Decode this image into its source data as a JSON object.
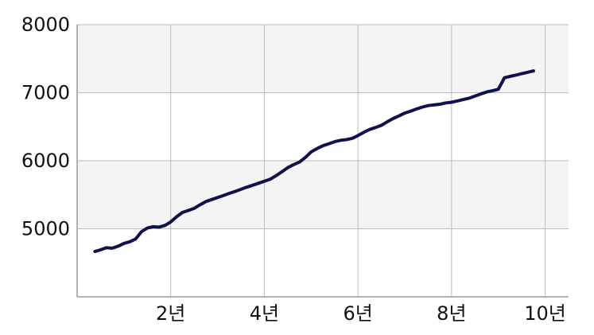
{
  "chart_data": {
    "type": "line",
    "title": "",
    "xlabel": "",
    "ylabel": "",
    "xlim": [
      0,
      10.5
    ],
    "ylim": [
      4000,
      8000
    ],
    "y_ticks": [
      5000,
      6000,
      7000,
      8000
    ],
    "y_tick_labels": [
      "5000",
      "6000",
      "7000",
      "8000"
    ],
    "x_ticks": [
      2,
      4,
      6,
      8,
      10
    ],
    "x_tick_labels": [
      "2년",
      "4년",
      "6년",
      "8년",
      "10년"
    ],
    "grid": true,
    "legend": "none",
    "colors": {
      "line": "#12124a",
      "band": "#f4f4f4",
      "grid": "#bdbdbd",
      "axis": "#9a9a9a"
    },
    "series": [
      {
        "x": [
          0.38,
          0.5,
          0.62,
          0.75,
          0.88,
          1.0,
          1.13,
          1.25,
          1.38,
          1.5,
          1.62,
          1.75,
          1.88,
          2.0,
          2.13,
          2.25,
          2.38,
          2.5,
          2.62,
          2.75,
          2.88,
          3.0,
          3.13,
          3.25,
          3.38,
          3.5,
          3.62,
          3.75,
          3.88,
          4.0,
          4.13,
          4.25,
          4.38,
          4.5,
          4.62,
          4.75,
          4.88,
          5.0,
          5.13,
          5.25,
          5.38,
          5.5,
          5.62,
          5.75,
          5.88,
          6.0,
          6.13,
          6.25,
          6.38,
          6.5,
          6.62,
          6.75,
          6.88,
          7.0,
          7.13,
          7.25,
          7.38,
          7.5,
          7.62,
          7.75,
          7.88,
          8.0,
          8.13,
          8.25,
          8.38,
          8.5,
          8.62,
          8.75,
          8.88,
          9.0,
          9.13,
          9.25,
          9.38,
          9.5,
          9.62,
          9.75
        ],
        "y": [
          4665,
          4690,
          4720,
          4715,
          4745,
          4785,
          4810,
          4850,
          4960,
          5010,
          5030,
          5025,
          5050,
          5100,
          5180,
          5240,
          5270,
          5300,
          5350,
          5400,
          5430,
          5460,
          5490,
          5520,
          5550,
          5580,
          5610,
          5640,
          5670,
          5700,
          5730,
          5780,
          5840,
          5900,
          5940,
          5980,
          6050,
          6130,
          6180,
          6220,
          6250,
          6280,
          6300,
          6310,
          6330,
          6370,
          6420,
          6460,
          6490,
          6520,
          6570,
          6620,
          6660,
          6700,
          6730,
          6760,
          6790,
          6810,
          6820,
          6830,
          6850,
          6860,
          6880,
          6900,
          6920,
          6950,
          6980,
          7010,
          7030,
          7050,
          7220,
          7240,
          7260,
          7280,
          7300,
          7320
        ]
      }
    ]
  }
}
